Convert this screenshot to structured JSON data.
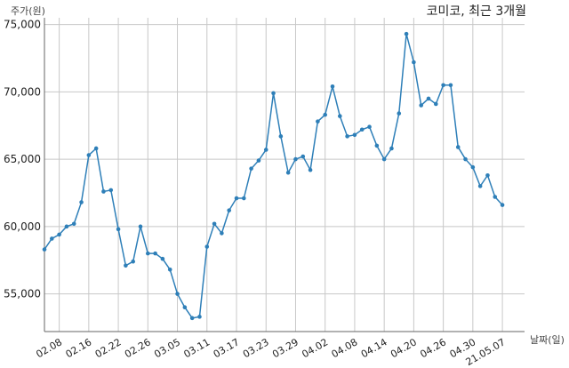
{
  "chart_data": {
    "type": "line",
    "title": "코미코, 최근 3개월",
    "ylabel": "주가(원)",
    "xlabel": "날짜(일)",
    "ylim": [
      52200,
      75500
    ],
    "yticks": [
      55000,
      60000,
      65000,
      70000,
      75000
    ],
    "ytick_labels": [
      "55,000",
      "60,000",
      "65,000",
      "70,000",
      "75,000"
    ],
    "grid": true,
    "line_color": "#2e7fb8",
    "x_range": [
      0,
      65
    ],
    "xticks": [
      {
        "x": 2,
        "label": "02.08"
      },
      {
        "x": 6,
        "label": "02.16"
      },
      {
        "x": 10,
        "label": "02.22"
      },
      {
        "x": 14,
        "label": "02.26"
      },
      {
        "x": 18,
        "label": "03.05"
      },
      {
        "x": 22,
        "label": "03.11"
      },
      {
        "x": 26,
        "label": "03.17"
      },
      {
        "x": 30,
        "label": "03.23"
      },
      {
        "x": 34,
        "label": "03.29"
      },
      {
        "x": 38,
        "label": "04.02"
      },
      {
        "x": 42,
        "label": "04.08"
      },
      {
        "x": 46,
        "label": "04.14"
      },
      {
        "x": 50,
        "label": "04.20"
      },
      {
        "x": 54,
        "label": "04.26"
      },
      {
        "x": 58,
        "label": "04.30"
      },
      {
        "x": 62,
        "label": "21.05.07"
      }
    ],
    "series": [
      {
        "values": [
          58300,
          59100,
          59400,
          60000,
          60200,
          61800,
          65300,
          65800,
          62600,
          62700,
          59800,
          57100,
          57400,
          60000,
          58000,
          58000,
          57600,
          56800,
          55000,
          54000,
          53200,
          53300,
          58500,
          60200,
          59500,
          61200,
          62100,
          62100,
          64300,
          64900,
          65700,
          69900,
          66700,
          64000,
          65000,
          65200,
          64200,
          67800,
          68300,
          70400,
          68200,
          66700,
          66800,
          67200,
          67400,
          66000,
          65000,
          65800,
          68400,
          74300,
          72200,
          69000,
          69500,
          69100,
          70500,
          70500,
          65900,
          65000,
          64400,
          63000,
          63800,
          62200,
          61600
        ]
      }
    ]
  }
}
